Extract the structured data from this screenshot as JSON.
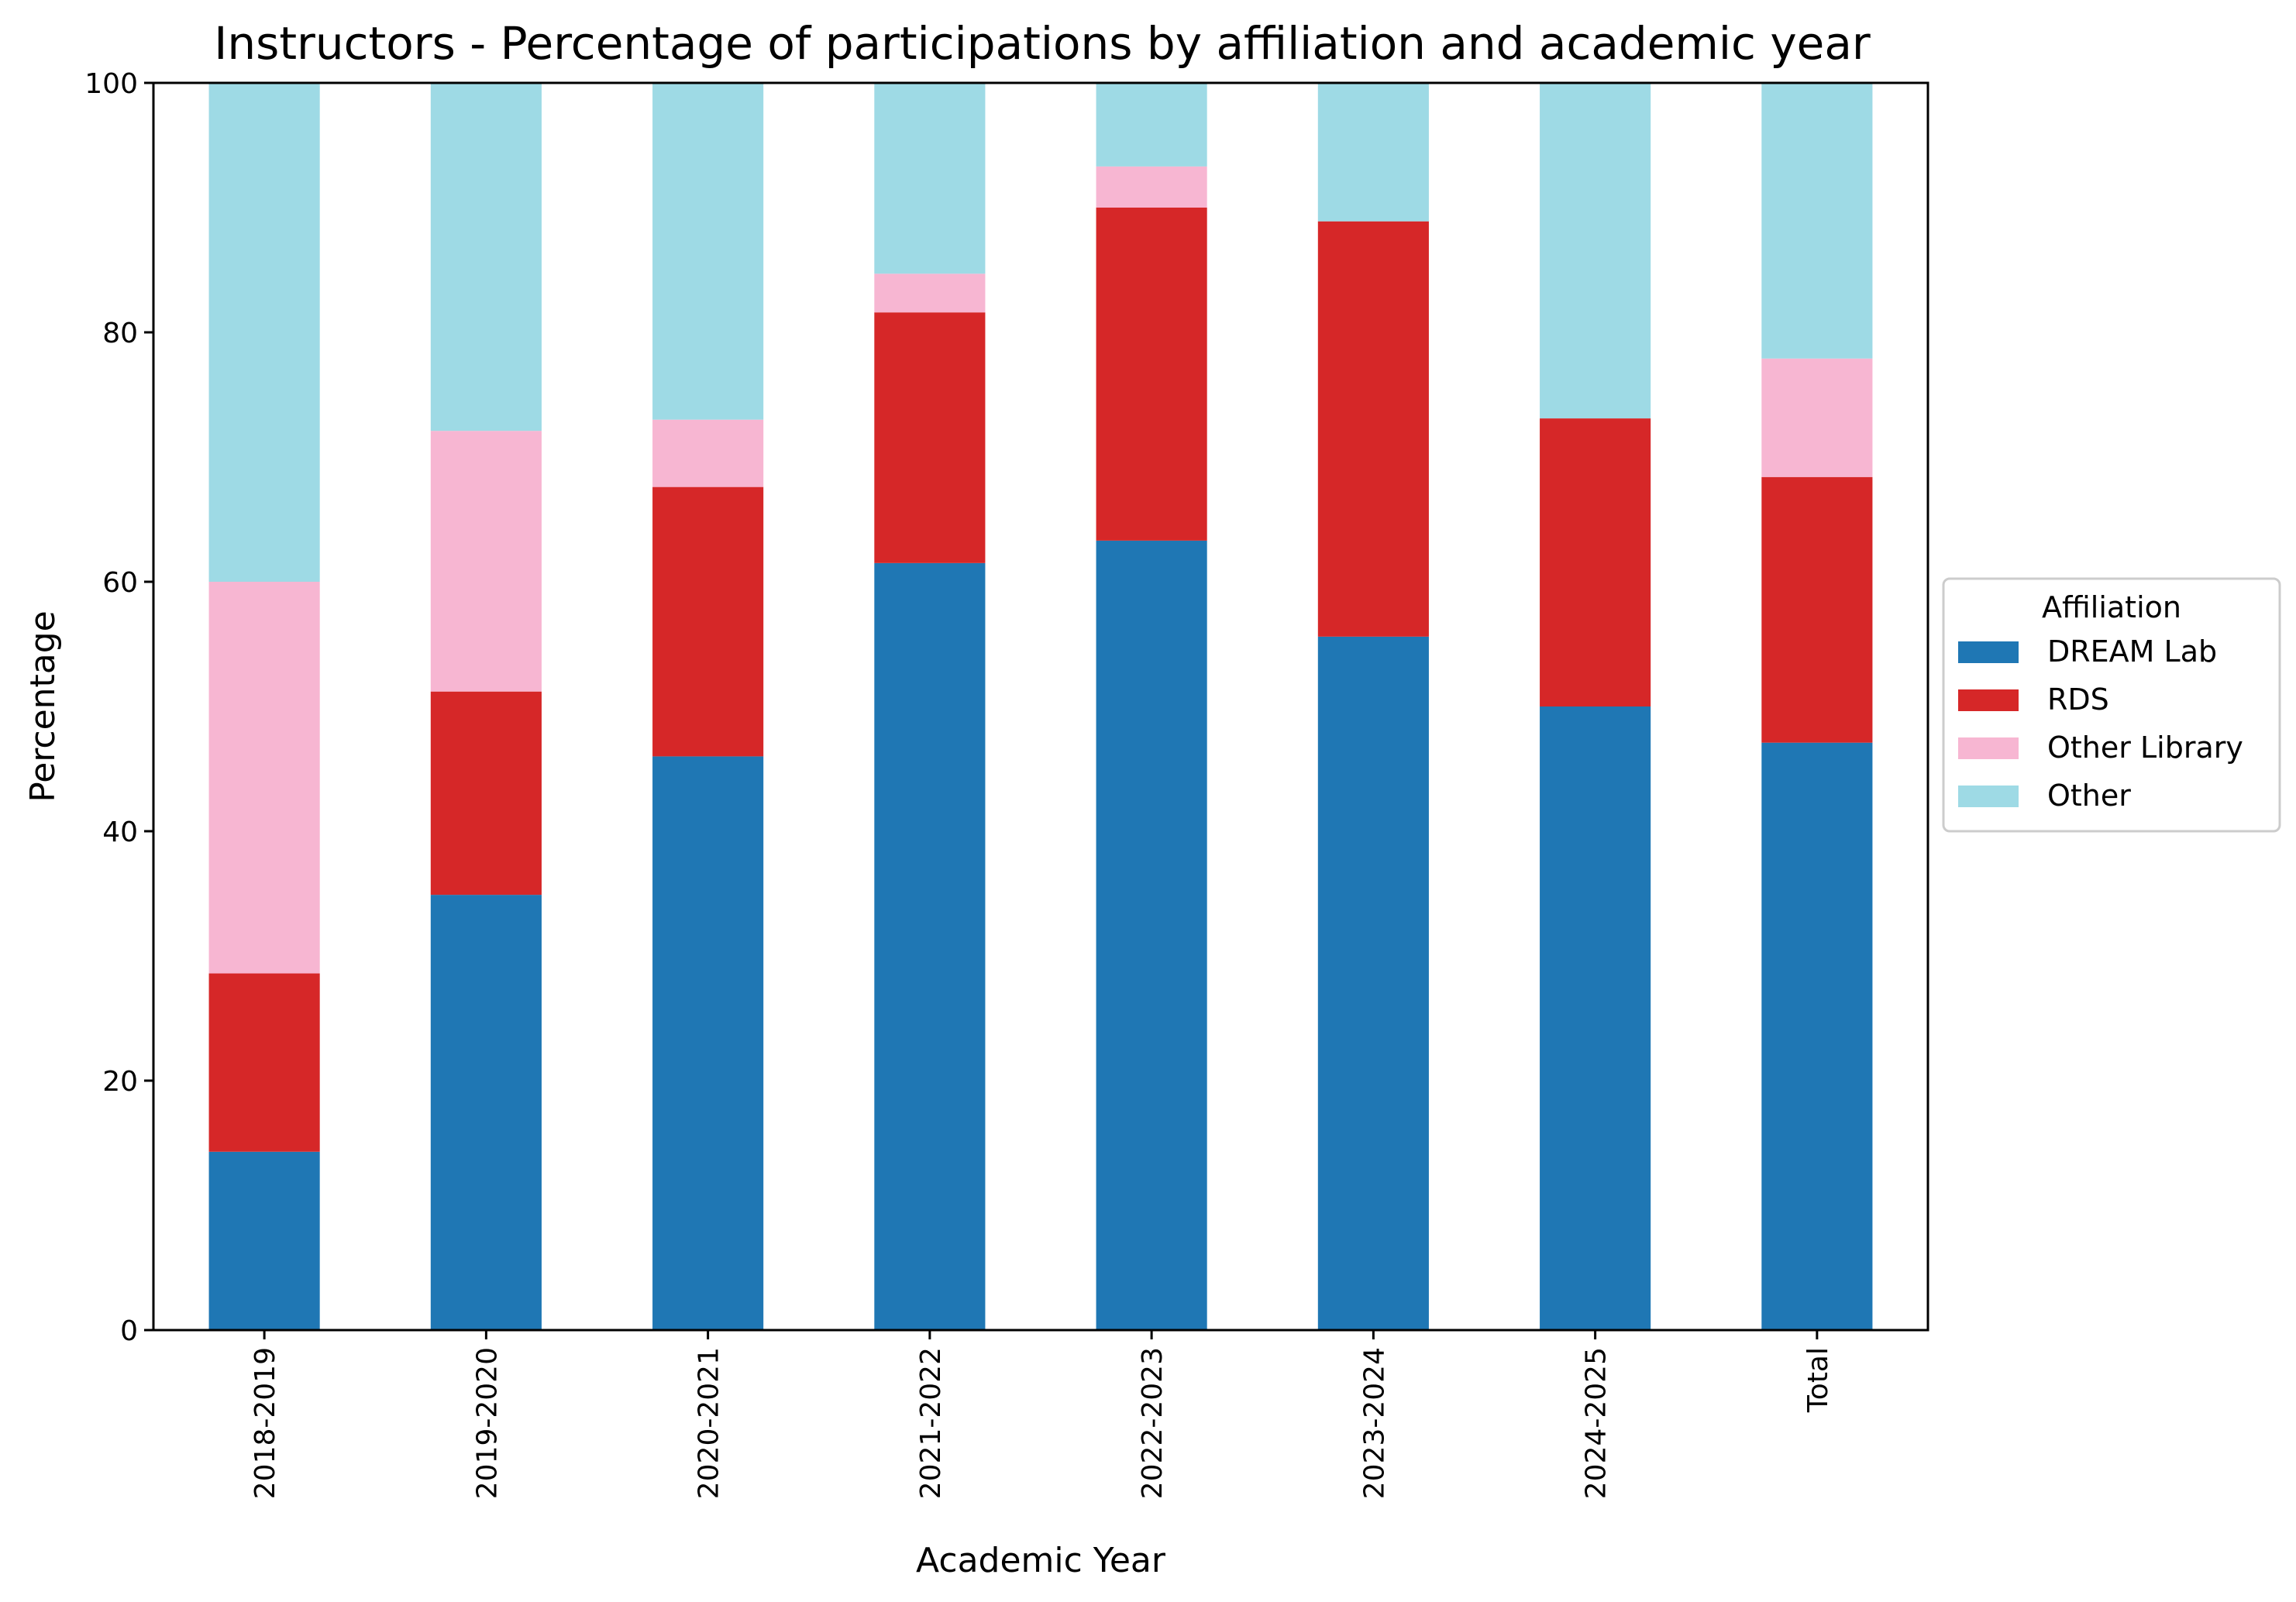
{
  "chart_data": {
    "type": "bar",
    "stacked": true,
    "title": "Instructors - Percentage of participations by affiliation and academic year",
    "xlabel": "Academic Year",
    "ylabel": "Percentage",
    "ylim": [
      0,
      100
    ],
    "yticks": [
      0,
      20,
      40,
      60,
      80,
      100
    ],
    "categories": [
      "2018-2019",
      "2019-2020",
      "2020-2021",
      "2021-2022",
      "2022-2023",
      "2023-2024",
      "2024-2025",
      "Total"
    ],
    "series": [
      {
        "name": "DREAM Lab",
        "color": "#1f77b4",
        "values": [
          14.3,
          34.9,
          46.0,
          61.5,
          63.3,
          55.6,
          50.0,
          47.1
        ]
      },
      {
        "name": "RDS",
        "color": "#d62728",
        "values": [
          14.3,
          16.3,
          21.6,
          20.1,
          26.7,
          33.3,
          23.1,
          21.3
        ]
      },
      {
        "name": "Other Library",
        "color": "#f7b6d2",
        "values": [
          31.4,
          20.9,
          5.4,
          3.1,
          3.3,
          0.0,
          0.0,
          9.5
        ]
      },
      {
        "name": "Other",
        "color": "#9edae5",
        "values": [
          40.0,
          27.9,
          27.0,
          15.3,
          6.7,
          11.1,
          26.9,
          22.1
        ]
      }
    ],
    "grid": false,
    "legend": {
      "title": "Affiliation",
      "placement": "outside right"
    }
  }
}
